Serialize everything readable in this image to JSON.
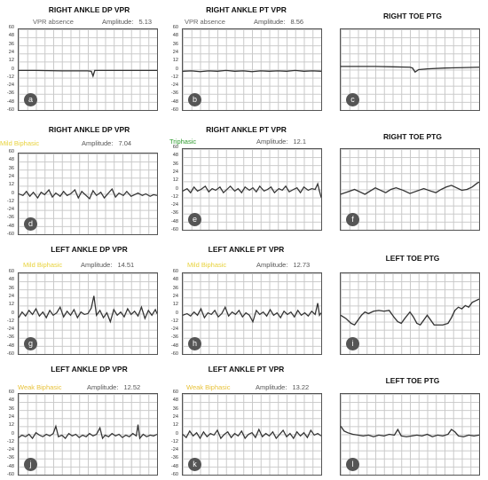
{
  "axis_ticks": [
    "60",
    "48",
    "36",
    "24",
    "12",
    "0",
    "-12",
    "-24",
    "-36",
    "-48",
    "-60"
  ],
  "colors": {
    "mild": "#e8d23a",
    "weak": "#e8c23a",
    "triphasic": "#2e9b2e",
    "absence": "#666666",
    "trace": "#333333"
  },
  "panels": [
    {
      "id": "a",
      "title": "RIGHT ANKLE DP VPR",
      "status": "VPR absence",
      "status_color": "absence",
      "amp_label": "Amplitude:",
      "amp_value": "5.13",
      "ticks": true
    },
    {
      "id": "b",
      "title": "RIGHT ANKLE PT VPR",
      "status": "VPR absence",
      "status_color": "absence",
      "amp_label": "Amplitude:",
      "amp_value": "8.56",
      "ticks": true
    },
    {
      "id": "c",
      "title": "RIGHT TOE PTG",
      "status": "",
      "amp_label": "",
      "amp_value": "",
      "ticks": false
    },
    {
      "id": "d",
      "title": "RIGHT ANKLE DP VPR",
      "status": "Mild Biphasic",
      "status_color": "mild",
      "amp_label": "Amplitude:",
      "amp_value": "7.04",
      "ticks": true
    },
    {
      "id": "e",
      "title": "RIGHT ANKLE PT VPR",
      "status": "Triphasic",
      "status_color": "triphasic",
      "amp_label": "Amplitude:",
      "amp_value": "12.1",
      "ticks": true
    },
    {
      "id": "f",
      "title": "RIGHT TOE PTG",
      "status": "",
      "amp_label": "",
      "amp_value": "",
      "ticks": false
    },
    {
      "id": "g",
      "title": "LEFT ANKLE DP VPR",
      "status": "Mild Biphasic",
      "status_color": "mild",
      "amp_label": "Amplitude:",
      "amp_value": "14.51",
      "ticks": true
    },
    {
      "id": "h",
      "title": "LEFT ANKLE PT VPR",
      "status": "Mild Biphasic",
      "status_color": "mild",
      "amp_label": "Amplitude:",
      "amp_value": "12.73",
      "ticks": true
    },
    {
      "id": "i",
      "title": "LEFT TOE PTG",
      "status": "",
      "amp_label": "",
      "amp_value": "",
      "ticks": false
    },
    {
      "id": "j",
      "title": "LEFT ANKLE DP VPR",
      "status": "Weak Biphasic",
      "status_color": "weak",
      "amp_label": "Amplitude:",
      "amp_value": "12.52",
      "ticks": true
    },
    {
      "id": "k",
      "title": "LEFT ANKLE PT VPR",
      "status": "Weak Biphasic",
      "status_color": "weak",
      "amp_label": "Amplitude:",
      "amp_value": "13.22",
      "ticks": true
    },
    {
      "id": "l",
      "title": "LEFT TOE PTG",
      "status": "",
      "amp_label": "",
      "amp_value": "",
      "ticks": false
    }
  ]
}
